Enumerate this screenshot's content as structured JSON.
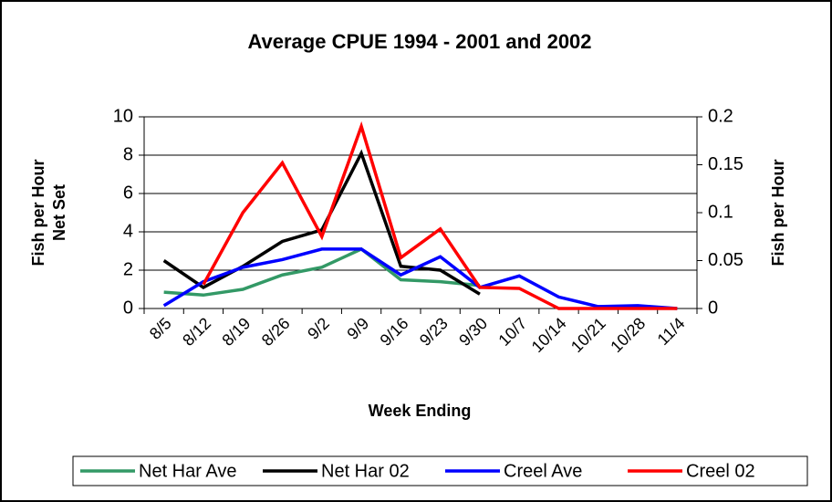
{
  "chart_data": {
    "type": "line",
    "title": "Average CPUE 1994 - 2001 and 2002",
    "xlabel": "Week Ending",
    "ylabel": [
      "Fish per Hour",
      "Net Set"
    ],
    "y2label": "Fish per Hour",
    "categories": [
      "8/5",
      "8/12",
      "8/19",
      "8/26",
      "9/2",
      "9/9",
      "9/16",
      "9/23",
      "9/30",
      "10/7",
      "10/14",
      "10/21",
      "10/28",
      "11/4"
    ],
    "ylim": [
      0,
      10
    ],
    "yticks": [
      0,
      2,
      4,
      6,
      8,
      10
    ],
    "y2lim": [
      0,
      0.2
    ],
    "y2ticks": [
      0,
      0.05,
      0.1,
      0.15,
      0.2
    ],
    "grid": true,
    "legend": "bottom",
    "series": [
      {
        "name": "Net Har Ave",
        "color": "#339966",
        "values": [
          0.85,
          0.7,
          1.0,
          1.75,
          2.15,
          3.1,
          1.5,
          1.4,
          1.2,
          null,
          null,
          null,
          null,
          null
        ]
      },
      {
        "name": "Net Har 02",
        "color": "#000000",
        "values": [
          2.5,
          1.1,
          2.2,
          3.5,
          4.1,
          8.1,
          2.2,
          2.0,
          0.75,
          null,
          null,
          null,
          null,
          null
        ]
      },
      {
        "name": "Creel Ave",
        "color": "#0000ff",
        "axis": "y2",
        "values": [
          0.003,
          0.028,
          0.043,
          0.051,
          0.062,
          0.062,
          0.035,
          0.054,
          0.022,
          0.034,
          0.012,
          0.002,
          0.003,
          0
        ]
      },
      {
        "name": "Creel 02",
        "color": "#ff0000",
        "axis": "y2",
        "values": [
          null,
          0.025,
          0.1,
          0.152,
          0.075,
          0.19,
          0.053,
          0.083,
          0.022,
          0.021,
          0,
          0,
          0,
          0
        ]
      }
    ]
  }
}
